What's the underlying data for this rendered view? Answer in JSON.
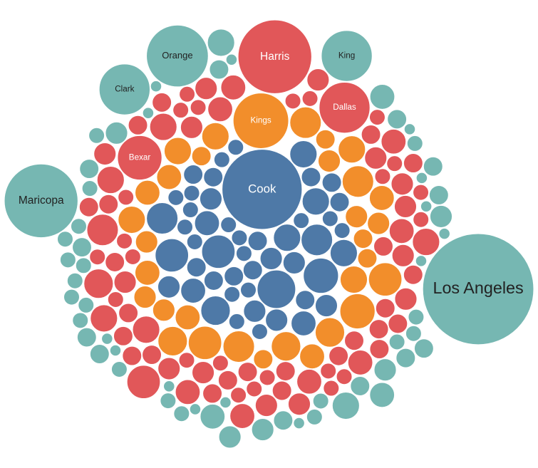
{
  "chart_data": {
    "type": "packed-bubble",
    "series": [
      {
        "color": "#4e79a7",
        "label_color": "#ffffff",
        "values": [
          3,
          2,
          52,
          4,
          2,
          6,
          3,
          9,
          2,
          4,
          12,
          3,
          2,
          5,
          8,
          2,
          3,
          4,
          10,
          2,
          6,
          3,
          2,
          4,
          7,
          2,
          3,
          5,
          2,
          9,
          3,
          2,
          4,
          2,
          6,
          3,
          2,
          5,
          2,
          3,
          8,
          2,
          4,
          3,
          2,
          6,
          2,
          3,
          4,
          2
        ],
        "labels": [
          null,
          null,
          "Cook",
          null,
          null,
          null,
          null,
          null,
          null,
          null,
          null,
          null,
          null,
          null,
          null,
          null,
          null,
          null,
          null,
          null,
          null,
          null,
          null,
          null,
          null,
          null,
          null,
          null,
          null,
          null,
          null,
          null,
          null,
          null,
          null,
          null,
          null,
          null,
          null,
          null,
          null,
          null,
          null,
          null,
          null,
          null,
          null,
          null,
          null,
          null
        ]
      },
      {
        "color": "#f28e2b",
        "label_color": "#ffffff",
        "values": [
          6,
          4,
          8,
          5,
          3,
          25,
          7,
          4,
          9,
          5,
          3,
          6,
          8,
          4,
          5,
          7,
          3,
          10,
          4,
          6,
          5,
          3,
          8,
          4,
          6,
          9,
          5,
          3,
          7,
          4,
          6,
          5
        ],
        "labels": [
          null,
          null,
          null,
          null,
          null,
          "Kings",
          null,
          null,
          null,
          null,
          null,
          null,
          null,
          null,
          null,
          null,
          null,
          null,
          null,
          null,
          null,
          null,
          null,
          null,
          null,
          null,
          null,
          null,
          null,
          null,
          null,
          null
        ]
      },
      {
        "color": "#e15759",
        "label_color": "#ffffff",
        "values": [
          3,
          2,
          4,
          16,
          3,
          2,
          5,
          3,
          4,
          2,
          6,
          3,
          2,
          4,
          3,
          21,
          2,
          5,
          3,
          4,
          2,
          3,
          6,
          2,
          4,
          3,
          2,
          5,
          3,
          2,
          4,
          8,
          3,
          2,
          5,
          3,
          4,
          2,
          6,
          3,
          2,
          4,
          44,
          3,
          2,
          5,
          3,
          2,
          4,
          3,
          7,
          2,
          3,
          4,
          2,
          5,
          3,
          2,
          6,
          3,
          4,
          2,
          3,
          5,
          2,
          4,
          3,
          2,
          6,
          3,
          2,
          4,
          3,
          5,
          2,
          9,
          3,
          2,
          4,
          3
        ],
        "labels": [
          null,
          null,
          null,
          "Bexar",
          null,
          null,
          null,
          null,
          null,
          null,
          null,
          null,
          null,
          null,
          null,
          "Dallas",
          null,
          null,
          null,
          null,
          null,
          null,
          null,
          null,
          null,
          null,
          null,
          null,
          null,
          null,
          null,
          null,
          null,
          null,
          null,
          null,
          null,
          null,
          null,
          null,
          null,
          null,
          "Harris",
          null,
          null,
          null,
          null,
          null,
          null,
          null,
          null,
          null,
          null,
          null,
          null,
          null,
          null,
          null,
          null,
          null,
          null,
          null,
          null,
          null,
          null,
          null,
          null,
          null,
          null,
          null,
          null,
          null,
          null,
          null,
          null,
          null,
          null,
          null,
          null,
          null
        ]
      },
      {
        "color": "#76b7b2",
        "label_color": "#222222",
        "values": [
          2,
          3,
          1,
          100,
          2,
          4,
          1,
          3,
          2,
          5,
          2,
          1,
          31,
          3,
          2,
          4,
          1,
          2,
          3,
          6,
          1,
          2,
          3,
          21,
          2,
          1,
          4,
          2,
          3,
          1,
          2,
          5,
          1,
          3,
          2,
          21,
          1,
          2,
          4,
          3,
          2,
          1,
          3,
          2,
          44,
          1,
          2,
          5,
          3,
          2,
          1,
          3,
          2,
          4,
          1,
          2,
          6,
          3,
          1,
          2
        ],
        "labels": [
          null,
          null,
          null,
          "Los Angeles",
          null,
          null,
          null,
          null,
          null,
          null,
          null,
          null,
          "Orange",
          null,
          null,
          null,
          null,
          null,
          null,
          null,
          null,
          null,
          null,
          "Clark",
          null,
          null,
          null,
          null,
          null,
          null,
          null,
          null,
          null,
          null,
          null,
          "King",
          null,
          null,
          null,
          null,
          null,
          null,
          null,
          null,
          "Maricopa",
          null,
          null,
          null,
          null,
          null,
          null,
          null,
          null,
          null,
          null,
          null,
          null,
          null,
          null,
          null
        ]
      }
    ]
  }
}
